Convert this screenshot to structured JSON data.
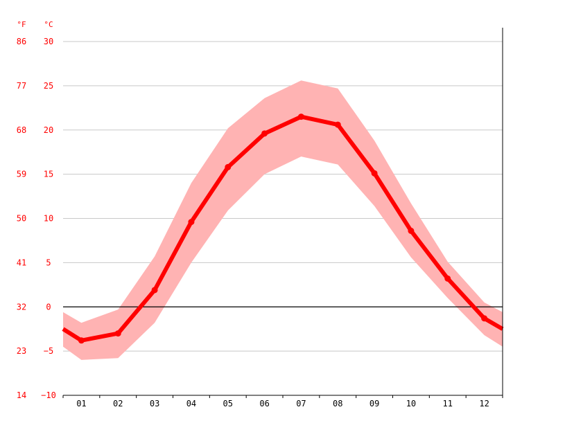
{
  "chart_data": {
    "type": "line",
    "title": "",
    "units": {
      "left": "°F",
      "right": "°C"
    },
    "categories": [
      "01",
      "02",
      "03",
      "04",
      "05",
      "06",
      "07",
      "08",
      "09",
      "10",
      "11",
      "12"
    ],
    "y_axis_c": {
      "range": [
        -10,
        30
      ],
      "ticks": [
        30,
        25,
        20,
        15,
        10,
        5,
        0,
        -5,
        -10
      ],
      "tick_labels": [
        "30",
        "25",
        "20",
        "15",
        "10",
        "5",
        "0",
        "−5",
        "−10"
      ]
    },
    "y_axis_f": {
      "tick_labels": [
        "86",
        "77",
        "68",
        "59",
        "50",
        "41",
        "32",
        "23",
        "14"
      ]
    },
    "zero_line": true,
    "grid": true,
    "series": [
      {
        "type": "line",
        "values": [
          -3.8,
          -3.0,
          1.9,
          9.6,
          15.8,
          19.6,
          21.5,
          20.6,
          15.1,
          8.6,
          3.2,
          -1.3
        ]
      },
      {
        "type": "band-upper",
        "values": [
          -1.8,
          -0.3,
          5.7,
          14.0,
          20.2,
          23.6,
          25.6,
          24.7,
          18.8,
          11.7,
          5.1,
          0.5
        ]
      },
      {
        "type": "band-lower",
        "values": [
          -6.0,
          -5.8,
          -1.8,
          5.0,
          10.9,
          15.0,
          17.0,
          16.1,
          11.4,
          5.6,
          1.0,
          -3.2
        ]
      }
    ],
    "edge_values": {
      "left": {
        "line": -2.5,
        "upper": -0.6,
        "lower": -4.5
      },
      "right": {
        "line": -2.5,
        "upper": -0.6,
        "lower": -4.5
      }
    },
    "colors": {
      "line": "#ff0000",
      "band": "#ffb3b3",
      "axis_text": "#ff0000",
      "grid": "#c8c8c8",
      "axis": "#000000"
    }
  }
}
